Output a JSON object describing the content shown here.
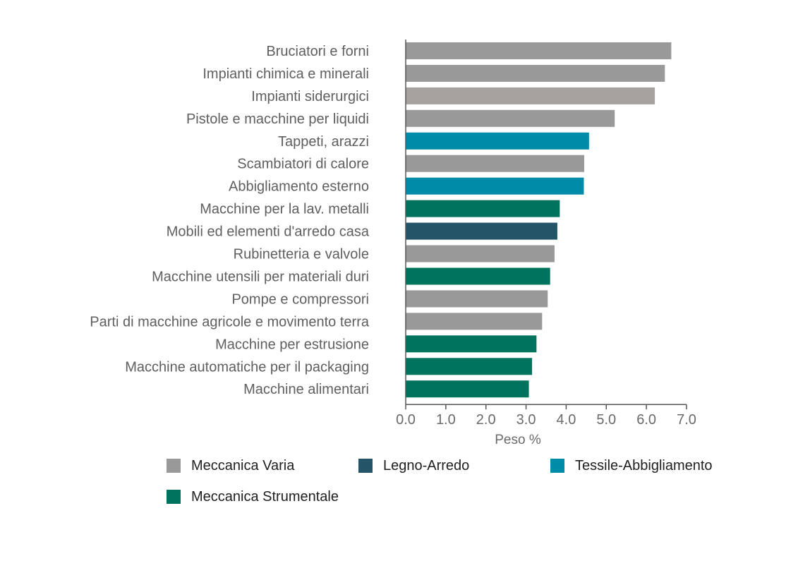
{
  "chart_data": {
    "type": "bar",
    "orientation": "horizontal",
    "categories": [
      "Bruciatori e forni",
      "Impianti chimica e minerali",
      "Impianti siderurgici",
      "Pistole e macchine per liquidi",
      "Tappeti, arazzi",
      "Scambiatori di calore",
      "Abbigliamento esterno",
      "Macchine per la lav. metalli",
      "Mobili ed elementi d'arredo casa",
      "Rubinetteria e valvole",
      "Macchine utensili per materiali duri",
      "Pompe e compressori",
      "Parti di macchine agricole e movimento terra",
      "Macchine per estrusione",
      "Macchine automatiche per il packaging",
      "Macchine alimentari"
    ],
    "values": [
      6.62,
      6.46,
      6.21,
      5.21,
      4.57,
      4.45,
      4.44,
      3.84,
      3.78,
      3.71,
      3.6,
      3.54,
      3.4,
      3.26,
      3.15,
      3.07
    ],
    "groups": [
      "Meccanica Varia",
      "Meccanica Varia",
      "Meccanica Varia",
      "Meccanica Varia",
      "Tessile-Abbigliamento",
      "Meccanica Varia",
      "Tessile-Abbigliamento",
      "Meccanica Strumentale",
      "Legno-Arredo",
      "Meccanica Varia",
      "Meccanica Strumentale",
      "Meccanica Varia",
      "Meccanica Varia",
      "Meccanica Strumentale",
      "Meccanica Strumentale",
      "Meccanica Strumentale"
    ],
    "bar_colors": [
      "#999999",
      "#999999",
      "#a7a19f",
      "#999999",
      "#008ba8",
      "#999999",
      "#008ba8",
      "#00735e",
      "#235468",
      "#999999",
      "#00735e",
      "#999999",
      "#999999",
      "#00735e",
      "#00735e",
      "#00735e"
    ],
    "xlabel": "Peso %",
    "xlim": [
      0,
      7
    ],
    "xticks": [
      "0.0",
      "1.0",
      "2.0",
      "3.0",
      "4.0",
      "5.0",
      "6.0",
      "7.0"
    ],
    "grid": false,
    "legend_position": "bottom",
    "legend": [
      {
        "name": "Meccanica Varia",
        "color": "#999999"
      },
      {
        "name": "Legno-Arredo",
        "color": "#235468"
      },
      {
        "name": "Tessile-Abbigliamento",
        "color": "#008ba8"
      },
      {
        "name": "Meccanica Strumentale",
        "color": "#00735e"
      }
    ]
  }
}
